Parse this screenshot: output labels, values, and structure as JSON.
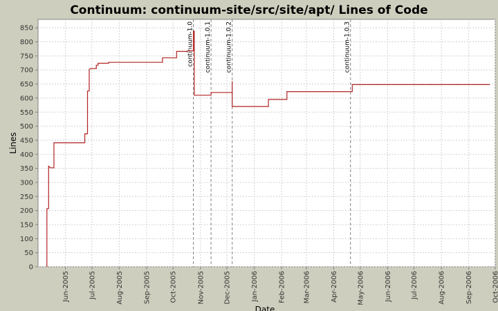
{
  "chart_data": {
    "type": "line",
    "title": "Continuum: continuum-site/src/site/apt/ Lines of Code",
    "xlabel": "Date",
    "ylabel": "Lines",
    "ylim": [
      0,
      880
    ],
    "xlim": [
      "2005-05-01",
      "2006-10-01"
    ],
    "y_ticks": [
      0,
      50,
      100,
      150,
      200,
      250,
      300,
      350,
      400,
      450,
      500,
      550,
      600,
      650,
      700,
      750,
      800,
      850
    ],
    "x_ticks": [
      {
        "date": "2005-06-01",
        "label": "Jun-2005"
      },
      {
        "date": "2005-07-01",
        "label": "Jul-2005"
      },
      {
        "date": "2005-08-01",
        "label": "Aug-2005"
      },
      {
        "date": "2005-09-01",
        "label": "Sep-2005"
      },
      {
        "date": "2005-10-01",
        "label": "Oct-2005"
      },
      {
        "date": "2005-11-01",
        "label": "Nov-2005"
      },
      {
        "date": "2005-12-01",
        "label": "Dec-2005"
      },
      {
        "date": "2006-01-01",
        "label": "Jan-2006"
      },
      {
        "date": "2006-02-01",
        "label": "Feb-2006"
      },
      {
        "date": "2006-03-01",
        "label": "Mar-2006"
      },
      {
        "date": "2006-04-01",
        "label": "Apr-2006"
      },
      {
        "date": "2006-05-01",
        "label": "May-2006"
      },
      {
        "date": "2006-06-01",
        "label": "Jun-2006"
      },
      {
        "date": "2006-07-01",
        "label": "Jul-2006"
      },
      {
        "date": "2006-08-01",
        "label": "Aug-2006"
      },
      {
        "date": "2006-09-01",
        "label": "Sep-2006"
      },
      {
        "date": "2006-10-01",
        "label": "Oct-2006"
      }
    ],
    "grid": true,
    "colors": {
      "line": "#b22222",
      "plot_bg": "#ffffff",
      "grid": "#d0d0d0",
      "marker": "#808080"
    },
    "series": [
      {
        "step": true,
        "points": [
          [
            "2005-05-11",
            0
          ],
          [
            "2005-05-11",
            207
          ],
          [
            "2005-05-13",
            207
          ],
          [
            "2005-05-13",
            358
          ],
          [
            "2005-05-15",
            352
          ],
          [
            "2005-05-19",
            352
          ],
          [
            "2005-05-19",
            441
          ],
          [
            "2005-06-23",
            441
          ],
          [
            "2005-06-23",
            473
          ],
          [
            "2005-06-26",
            473
          ],
          [
            "2005-06-26",
            625
          ],
          [
            "2005-06-28",
            625
          ],
          [
            "2005-06-28",
            700
          ],
          [
            "2005-06-29",
            705
          ],
          [
            "2005-07-06",
            705
          ],
          [
            "2005-07-06",
            717
          ],
          [
            "2005-07-08",
            717
          ],
          [
            "2005-07-08",
            724
          ],
          [
            "2005-07-20",
            724
          ],
          [
            "2005-07-20",
            727
          ],
          [
            "2005-09-19",
            727
          ],
          [
            "2005-09-19",
            743
          ],
          [
            "2005-10-05",
            743
          ],
          [
            "2005-10-05",
            766
          ],
          [
            "2005-10-17",
            766
          ],
          [
            "2005-10-17",
            768
          ],
          [
            "2005-10-24",
            768
          ],
          [
            "2005-10-24",
            838
          ],
          [
            "2005-10-25",
            838
          ],
          [
            "2005-10-25",
            610
          ],
          [
            "2005-11-13",
            610
          ],
          [
            "2005-11-13",
            620
          ],
          [
            "2005-12-07",
            620
          ],
          [
            "2005-12-07",
            660
          ],
          [
            "2005-12-07",
            570
          ],
          [
            "2006-01-17",
            570
          ],
          [
            "2006-01-17",
            595
          ],
          [
            "2006-02-07",
            595
          ],
          [
            "2006-02-07",
            623
          ],
          [
            "2006-04-22",
            623
          ],
          [
            "2006-04-22",
            648
          ],
          [
            "2006-09-25",
            648
          ]
        ]
      }
    ],
    "markers": [
      {
        "date": "2005-10-24",
        "label": "continuum-1.0"
      },
      {
        "date": "2005-11-13",
        "label": "continuum-1.0.1"
      },
      {
        "date": "2005-12-07",
        "label": "continuum-1.0.2"
      },
      {
        "date": "2006-04-20",
        "label": "continuum-1.0.3"
      }
    ]
  }
}
